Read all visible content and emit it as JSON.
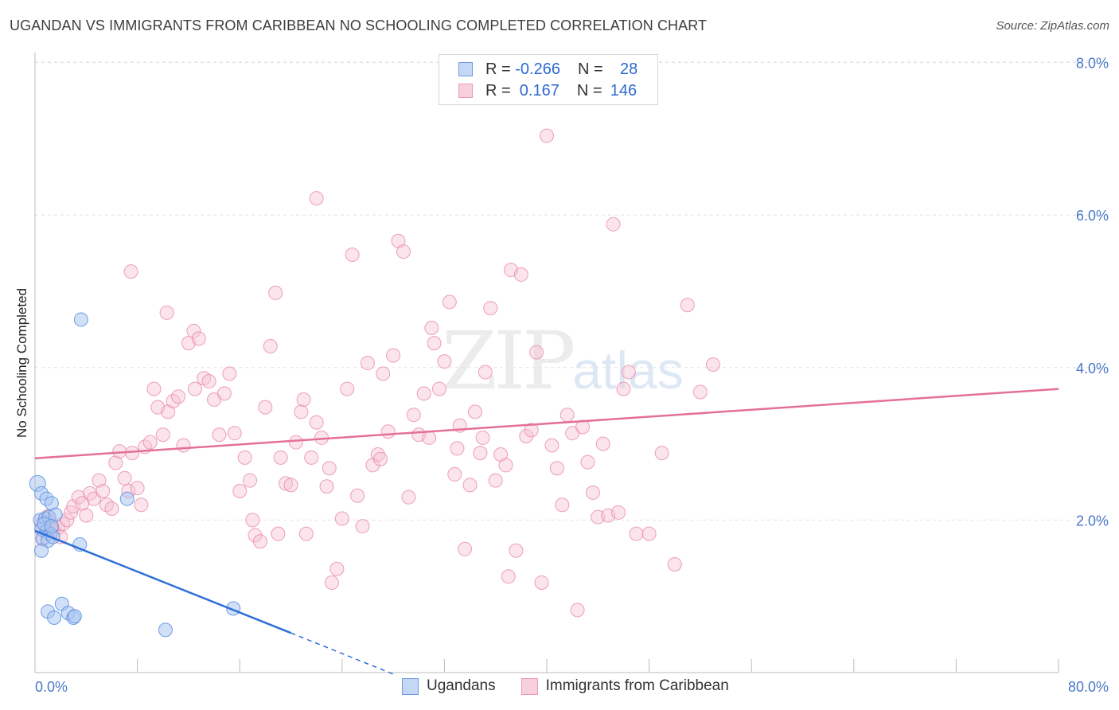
{
  "title": "UGANDAN VS IMMIGRANTS FROM CARIBBEAN NO SCHOOLING COMPLETED CORRELATION CHART",
  "source": "Source: ZipAtlas.com",
  "watermark": {
    "zip": "ZIP",
    "atlas": "atlas"
  },
  "legend": {
    "rows": [
      {
        "r_label": "R = ",
        "r_value": "-0.266",
        "n_label": "N = ",
        "n_value": "28"
      },
      {
        "r_label": "R = ",
        "r_value": " 0.167",
        "n_label": "N = ",
        "n_value": "146"
      }
    ]
  },
  "bottom_legend": [
    "Ugandans",
    "Immigrants from Caribbean"
  ],
  "colors": {
    "blue_fill": "#a9c6f0",
    "blue_stroke": "#5a8ee0",
    "blue_line": "#2d6fd6",
    "pink_fill": "#f6c3d2",
    "pink_stroke": "#e88aa8",
    "pink_line": "#e4709a",
    "grid": "#e2e2e2",
    "axis": "#999999"
  },
  "chart_data": {
    "type": "scatter",
    "title": "UGANDAN VS IMMIGRANTS FROM CARIBBEAN NO SCHOOLING COMPLETED CORRELATION CHART",
    "xlabel": "",
    "ylabel": "No Schooling Completed",
    "xlim": [
      0,
      80
    ],
    "ylim": [
      0,
      8.1
    ],
    "x_tick_labels": [
      "0.0%",
      "80.0%"
    ],
    "y_ticks": [
      2,
      4,
      6,
      8
    ],
    "y_tick_labels": [
      "2.0%",
      "4.0%",
      "6.0%",
      "8.0%"
    ],
    "series": [
      {
        "name": "Ugandans",
        "R": -0.266,
        "N": 28,
        "trend": {
          "x0": 0,
          "y0": 1.86,
          "x1": 20,
          "y1": 0.52,
          "dash_to_x": 28,
          "dash_to_y": -0.02
        },
        "points": [
          [
            0.2,
            2.48
          ],
          [
            0.5,
            2.35
          ],
          [
            0.9,
            2.28
          ],
          [
            1.3,
            2.22
          ],
          [
            0.4,
            2.0
          ],
          [
            0.8,
            2.02
          ],
          [
            1.1,
            2.04
          ],
          [
            0.5,
            1.88
          ],
          [
            0.9,
            1.85
          ],
          [
            1.2,
            1.82
          ],
          [
            0.6,
            1.76
          ],
          [
            1.0,
            1.73
          ],
          [
            1.4,
            1.78
          ],
          [
            0.5,
            1.6
          ],
          [
            3.5,
            1.68
          ],
          [
            3.6,
            4.63
          ],
          [
            7.2,
            2.28
          ],
          [
            1.0,
            0.8
          ],
          [
            1.5,
            0.72
          ],
          [
            2.1,
            0.9
          ],
          [
            2.6,
            0.78
          ],
          [
            3.0,
            0.72
          ],
          [
            3.1,
            0.74
          ],
          [
            10.2,
            0.56
          ],
          [
            15.5,
            0.84
          ],
          [
            1.6,
            2.07
          ],
          [
            0.7,
            1.95
          ],
          [
            1.3,
            1.92
          ]
        ]
      },
      {
        "name": "Immigrants from Caribbean",
        "R": 0.167,
        "N": 146,
        "trend": {
          "x0": 0,
          "y0": 2.81,
          "x1": 80,
          "y1": 3.72
        },
        "points": [
          [
            0.5,
            1.95
          ],
          [
            0.8,
            2.02
          ],
          [
            1.0,
            2.05
          ],
          [
            1.2,
            1.98
          ],
          [
            1.5,
            1.85
          ],
          [
            1.8,
            1.9
          ],
          [
            2.0,
            1.78
          ],
          [
            2.2,
            1.95
          ],
          [
            0.6,
            1.75
          ],
          [
            0.9,
            1.82
          ],
          [
            1.3,
            1.88
          ],
          [
            2.5,
            2.0
          ],
          [
            2.8,
            2.1
          ],
          [
            3.0,
            2.18
          ],
          [
            3.4,
            2.3
          ],
          [
            3.7,
            2.22
          ],
          [
            4.0,
            2.06
          ],
          [
            4.3,
            2.35
          ],
          [
            4.6,
            2.28
          ],
          [
            5.0,
            2.52
          ],
          [
            5.3,
            2.38
          ],
          [
            5.6,
            2.2
          ],
          [
            6.0,
            2.15
          ],
          [
            6.3,
            2.75
          ],
          [
            6.6,
            2.9
          ],
          [
            7.0,
            2.55
          ],
          [
            7.3,
            2.38
          ],
          [
            7.6,
            2.88
          ],
          [
            8.0,
            2.42
          ],
          [
            8.3,
            2.2
          ],
          [
            8.6,
            2.96
          ],
          [
            9.0,
            3.02
          ],
          [
            9.3,
            3.72
          ],
          [
            9.6,
            3.48
          ],
          [
            10.0,
            3.12
          ],
          [
            10.4,
            3.42
          ],
          [
            10.8,
            3.56
          ],
          [
            11.2,
            3.62
          ],
          [
            11.6,
            2.98
          ],
          [
            12.0,
            4.32
          ],
          [
            12.4,
            4.48
          ],
          [
            12.8,
            4.38
          ],
          [
            13.2,
            3.86
          ],
          [
            13.6,
            3.82
          ],
          [
            14.0,
            3.58
          ],
          [
            14.4,
            3.12
          ],
          [
            14.8,
            3.66
          ],
          [
            15.2,
            3.92
          ],
          [
            15.6,
            3.14
          ],
          [
            16.0,
            2.38
          ],
          [
            16.4,
            2.82
          ],
          [
            16.8,
            2.52
          ],
          [
            17.2,
            1.8
          ],
          [
            17.6,
            1.72
          ],
          [
            18.0,
            3.48
          ],
          [
            18.4,
            4.28
          ],
          [
            18.8,
            4.98
          ],
          [
            19.2,
            2.82
          ],
          [
            19.6,
            2.48
          ],
          [
            20.0,
            2.46
          ],
          [
            20.4,
            3.02
          ],
          [
            20.8,
            3.42
          ],
          [
            21.2,
            1.82
          ],
          [
            21.6,
            2.82
          ],
          [
            22.0,
            3.28
          ],
          [
            22.4,
            3.08
          ],
          [
            22.8,
            2.44
          ],
          [
            23.2,
            1.18
          ],
          [
            23.6,
            1.36
          ],
          [
            24.0,
            2.02
          ],
          [
            24.4,
            3.72
          ],
          [
            24.8,
            5.48
          ],
          [
            25.2,
            2.32
          ],
          [
            25.6,
            1.92
          ],
          [
            26.0,
            4.06
          ],
          [
            26.4,
            2.72
          ],
          [
            26.8,
            2.86
          ],
          [
            27.2,
            3.92
          ],
          [
            27.6,
            3.16
          ],
          [
            28.0,
            4.16
          ],
          [
            28.4,
            5.66
          ],
          [
            28.8,
            5.52
          ],
          [
            29.2,
            2.3
          ],
          [
            29.6,
            3.38
          ],
          [
            30.0,
            3.12
          ],
          [
            30.4,
            3.66
          ],
          [
            30.8,
            3.08
          ],
          [
            31.2,
            4.32
          ],
          [
            31.6,
            3.72
          ],
          [
            32.0,
            4.08
          ],
          [
            32.4,
            4.86
          ],
          [
            32.8,
            2.6
          ],
          [
            33.2,
            3.24
          ],
          [
            33.6,
            1.62
          ],
          [
            34.0,
            2.46
          ],
          [
            34.4,
            3.42
          ],
          [
            34.8,
            2.88
          ],
          [
            35.2,
            3.94
          ],
          [
            35.6,
            4.78
          ],
          [
            36.0,
            2.52
          ],
          [
            36.4,
            2.86
          ],
          [
            36.8,
            2.72
          ],
          [
            37.2,
            5.28
          ],
          [
            37.6,
            1.6
          ],
          [
            38.0,
            5.22
          ],
          [
            38.4,
            3.1
          ],
          [
            38.8,
            3.18
          ],
          [
            39.2,
            4.2
          ],
          [
            39.6,
            1.18
          ],
          [
            40.0,
            7.04
          ],
          [
            40.4,
            2.98
          ],
          [
            40.8,
            2.68
          ],
          [
            41.2,
            2.2
          ],
          [
            41.6,
            3.38
          ],
          [
            42.0,
            3.14
          ],
          [
            42.4,
            0.82
          ],
          [
            42.8,
            3.22
          ],
          [
            43.2,
            2.76
          ],
          [
            43.6,
            2.36
          ],
          [
            44.0,
            2.04
          ],
          [
            44.4,
            3.0
          ],
          [
            44.8,
            2.06
          ],
          [
            45.2,
            5.88
          ],
          [
            45.6,
            2.1
          ],
          [
            46.0,
            3.72
          ],
          [
            46.4,
            3.94
          ],
          [
            47.0,
            1.82
          ],
          [
            48.0,
            1.82
          ],
          [
            49.0,
            2.88
          ],
          [
            50.0,
            1.42
          ],
          [
            51.0,
            4.82
          ],
          [
            52.0,
            3.68
          ],
          [
            53.0,
            4.04
          ],
          [
            7.5,
            5.26
          ],
          [
            10.3,
            4.72
          ],
          [
            22.0,
            6.22
          ],
          [
            12.5,
            3.72
          ],
          [
            17.0,
            2.0
          ],
          [
            19.0,
            1.82
          ],
          [
            21.0,
            3.58
          ],
          [
            23.0,
            2.68
          ],
          [
            27.0,
            2.8
          ],
          [
            31.0,
            4.52
          ],
          [
            33.0,
            2.94
          ],
          [
            35.0,
            3.08
          ],
          [
            37.0,
            1.26
          ]
        ]
      }
    ]
  }
}
